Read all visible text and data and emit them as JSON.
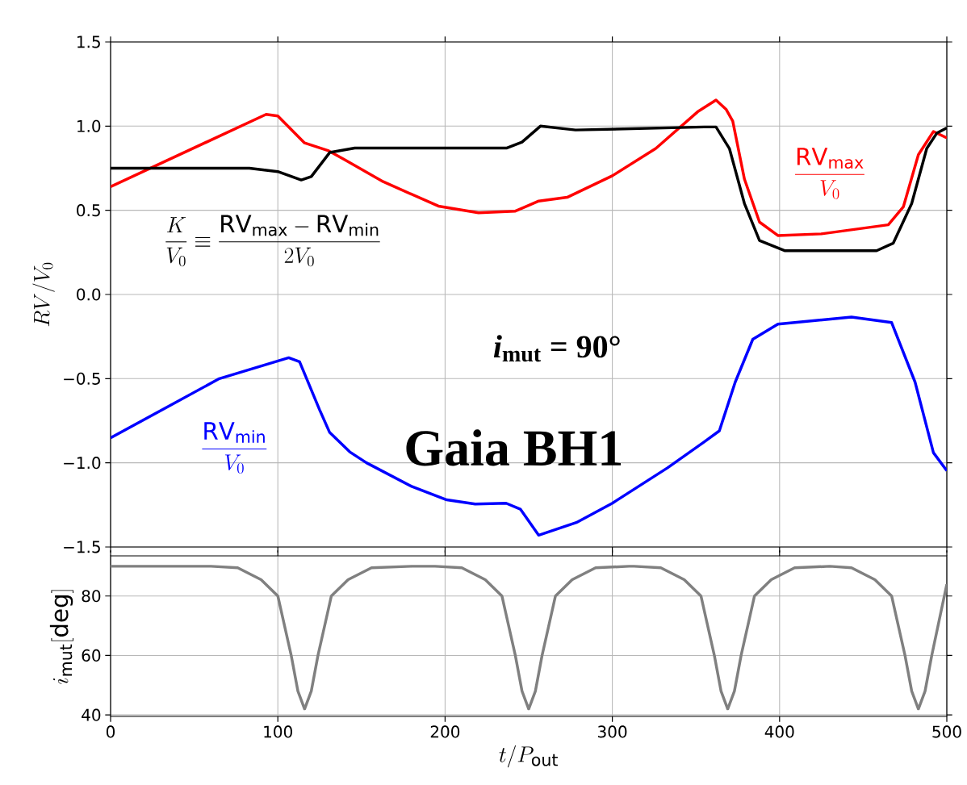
{
  "chart_data": [
    {
      "type": "line",
      "ylabel": "RV/V_0",
      "xlim": [
        0,
        500
      ],
      "ylim": [
        -1.5,
        1.5
      ],
      "xticks": [
        0,
        100,
        200,
        300,
        400,
        500
      ],
      "yticks": [
        {
          "value": -1.5,
          "label": "−1.5"
        },
        {
          "value": -1.0,
          "label": "−1.0"
        },
        {
          "value": -0.5,
          "label": "−0.5"
        },
        {
          "value": 0,
          "label": "0.0"
        },
        {
          "value": 0.5,
          "label": "0.5"
        },
        {
          "value": 1.0,
          "label": "1.0"
        },
        {
          "value": 1.5,
          "label": "1.5"
        }
      ],
      "tick_labels": "y",
      "grid": true,
      "annotations": [
        "\\frac{K}{V_0} \\equiv \\frac{\\mathrm{RV}_{\\mathrm{max}} - \\mathrm{RV}_{\\mathrm{min}}}{2V_0}",
        "*i*$_{mut}$ = 90°",
        "Gaia BH1"
      ],
      "series": [
        {
          "name": "\\frac{\\mathrm{RV}_{\\mathrm{max}}}{V_0}",
          "color": "#ff0000",
          "x": [
            0,
            93,
            100,
            116,
            130,
            140,
            163,
            196,
            220,
            242,
            256,
            273,
            300,
            326,
            351,
            362,
            368,
            372,
            379,
            388,
            399,
            425,
            465,
            474,
            483,
            492,
            500
          ],
          "values": [
            0.64,
            1.07,
            1.06,
            0.9,
            0.855,
            0.8,
            0.67,
            0.525,
            0.485,
            0.495,
            0.555,
            0.577,
            0.705,
            0.867,
            1.085,
            1.155,
            1.1,
            1.03,
            0.685,
            0.43,
            0.35,
            0.36,
            0.414,
            0.52,
            0.83,
            0.968,
            0.93
          ]
        },
        {
          "color": "#000000",
          "x": [
            0,
            83,
            100,
            114,
            120,
            131,
            146,
            237,
            246,
            257,
            278,
            355,
            362,
            370,
            379,
            388,
            403,
            458,
            468,
            479,
            488,
            494,
            500
          ],
          "values": [
            0.75,
            0.75,
            0.73,
            0.68,
            0.7,
            0.843,
            0.87,
            0.87,
            0.905,
            1.0,
            0.977,
            0.995,
            0.995,
            0.867,
            0.54,
            0.32,
            0.26,
            0.26,
            0.305,
            0.54,
            0.867,
            0.958,
            0.99
          ]
        },
        {
          "name": "\\frac{\\mathrm{RV}_{\\mathrm{min}}}{V_0}",
          "color": "#0000ff",
          "x": [
            0,
            65,
            106.5,
            113,
            125,
            131,
            143,
            153,
            180,
            201,
            218,
            236.5,
            245,
            256,
            278.5,
            300,
            333,
            355,
            364,
            373.5,
            384,
            399,
            443,
            467,
            481,
            492,
            500
          ],
          "values": [
            -0.852,
            -0.5,
            -0.376,
            -0.4,
            -0.686,
            -0.82,
            -0.935,
            -1.0,
            -1.14,
            -1.22,
            -1.245,
            -1.24,
            -1.275,
            -1.43,
            -1.355,
            -1.24,
            -1.03,
            -0.875,
            -0.81,
            -0.52,
            -0.266,
            -0.176,
            -0.134,
            -0.167,
            -0.52,
            -0.94,
            -1.047
          ]
        }
      ]
    },
    {
      "type": "line",
      "xlabel": "t/P_{\\mathrm{out}}",
      "ylabel": "i_{\\mathrm{mut}}[\\mathrm{deg}]",
      "xlim": [
        0,
        500
      ],
      "ylim": [
        39.5,
        93.5
      ],
      "xticks": [
        0,
        100,
        200,
        300,
        400,
        500
      ],
      "yticks": [
        40,
        60,
        80
      ],
      "grid": true,
      "series": [
        {
          "color": "#808080",
          "x": [
            0,
            60,
            76,
            90,
            100,
            108,
            112,
            116,
            120,
            124,
            132,
            142,
            156,
            180,
            194,
            210,
            224,
            234,
            242,
            246,
            250,
            254,
            258,
            266,
            276,
            290,
            310,
            313,
            329,
            343,
            353,
            361,
            365,
            369,
            373,
            377,
            385,
            395,
            409,
            430,
            443,
            457,
            467,
            475,
            479,
            483,
            487,
            491,
            500
          ],
          "values": [
            90,
            90,
            89.5,
            85.5,
            80,
            60,
            48,
            42,
            48,
            60,
            80,
            85.5,
            89.5,
            90,
            90,
            89.5,
            85.5,
            80,
            60,
            48,
            42,
            48,
            60,
            80,
            85.5,
            89.5,
            90,
            90,
            89.5,
            85.5,
            80,
            60,
            48,
            42,
            48,
            60,
            80,
            85.5,
            89.5,
            90,
            89.5,
            85.5,
            80,
            60,
            48,
            42,
            48,
            60,
            84
          ]
        }
      ]
    }
  ]
}
